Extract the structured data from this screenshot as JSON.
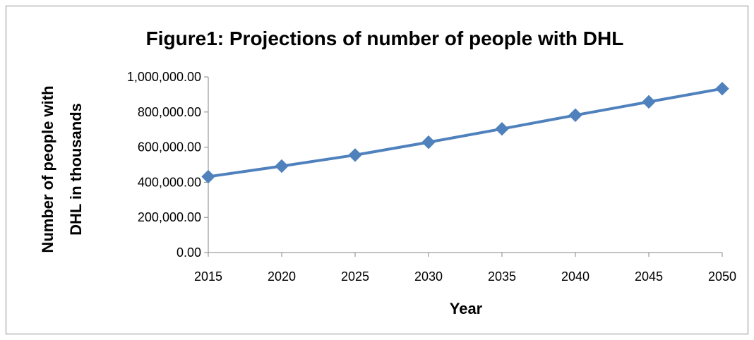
{
  "chart_data": {
    "type": "line",
    "title": "Figure1: Projections of number of people with DHL",
    "xlabel": "Year",
    "ylabel_lines": [
      "Number of people with",
      "DHL in thousands"
    ],
    "x": [
      2015,
      2020,
      2025,
      2030,
      2035,
      2040,
      2045,
      2050
    ],
    "x_tick_labels": [
      "2015",
      "2020",
      "2025",
      "2030",
      "2035",
      "2040",
      "2045",
      "2050"
    ],
    "series": [
      {
        "values": [
          432000,
          492000,
          555000,
          628000,
          704000,
          782000,
          858000,
          933000
        ],
        "color": "#4f81bd"
      }
    ],
    "ylim": [
      0,
      1000000
    ],
    "y_ticks": [
      0,
      200000,
      400000,
      600000,
      800000,
      1000000
    ],
    "y_tick_labels": [
      "0.00",
      "200,000.00",
      "400,000.00",
      "600,000.00",
      "800,000.00",
      "1,000,000.00"
    ],
    "grid": false,
    "legend": "none",
    "marker": "diamond"
  }
}
